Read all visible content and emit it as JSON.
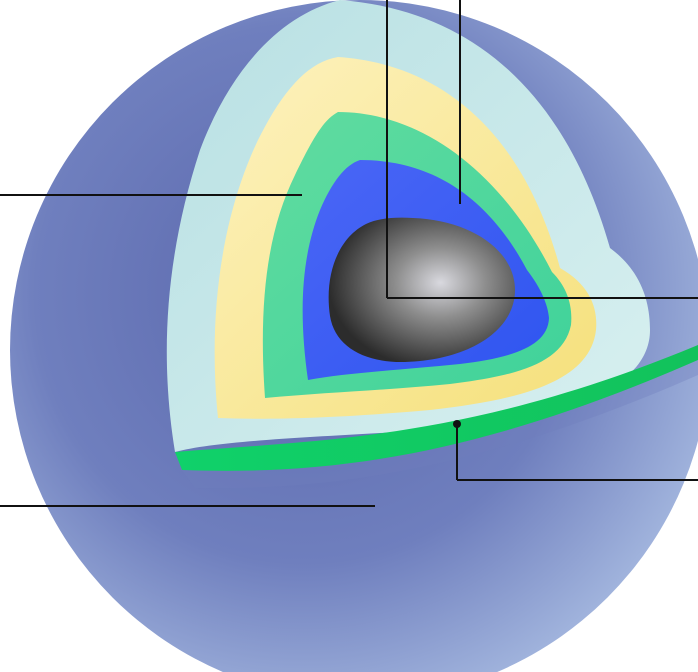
{
  "diagram": {
    "layers": [
      {
        "id": "outer-shell",
        "color": "#7584bf"
      },
      {
        "id": "pale-cyan-layer",
        "color": "#b9dfe3"
      },
      {
        "id": "yellow-layer",
        "color": "#fcefb4"
      },
      {
        "id": "green-layer",
        "color": "#5fdc9b"
      },
      {
        "id": "blue-layer",
        "color": "#4a66f6"
      },
      {
        "id": "inner-core",
        "color": "#6a6a6a"
      },
      {
        "id": "ring-green",
        "color": "#18d06a"
      }
    ],
    "leaders": [
      {
        "id": "leader-top-left"
      },
      {
        "id": "leader-top-right"
      },
      {
        "id": "leader-left-upper"
      },
      {
        "id": "leader-right-middle"
      },
      {
        "id": "leader-left-lower"
      },
      {
        "id": "leader-right-lower"
      }
    ]
  }
}
